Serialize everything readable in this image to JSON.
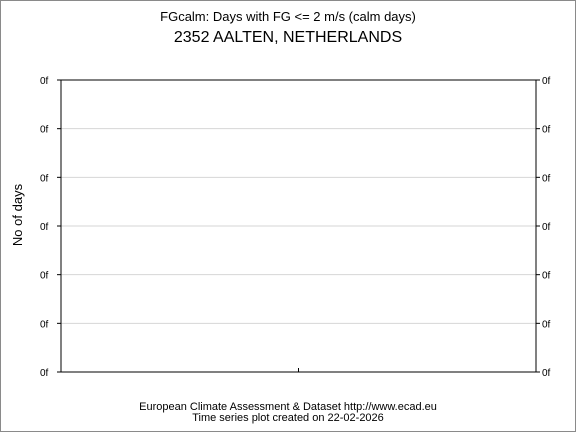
{
  "chart_data": {
    "type": "line",
    "title": "FGcalm: Days with FG <= 2 m/s (calm days)",
    "subtitle": "2352 AALTEN, NETHERLANDS",
    "ylabel": "No of days",
    "xlabel": "",
    "yticks": [
      "0f",
      "0f",
      "0f",
      "0f",
      "0f",
      "0f",
      "0f"
    ],
    "grid": true,
    "series": [],
    "footer": {
      "line1": "European Climate Assessment & Dataset  http://www.ecad.eu",
      "line2": "Time series plot created on 22-02-2026"
    }
  }
}
